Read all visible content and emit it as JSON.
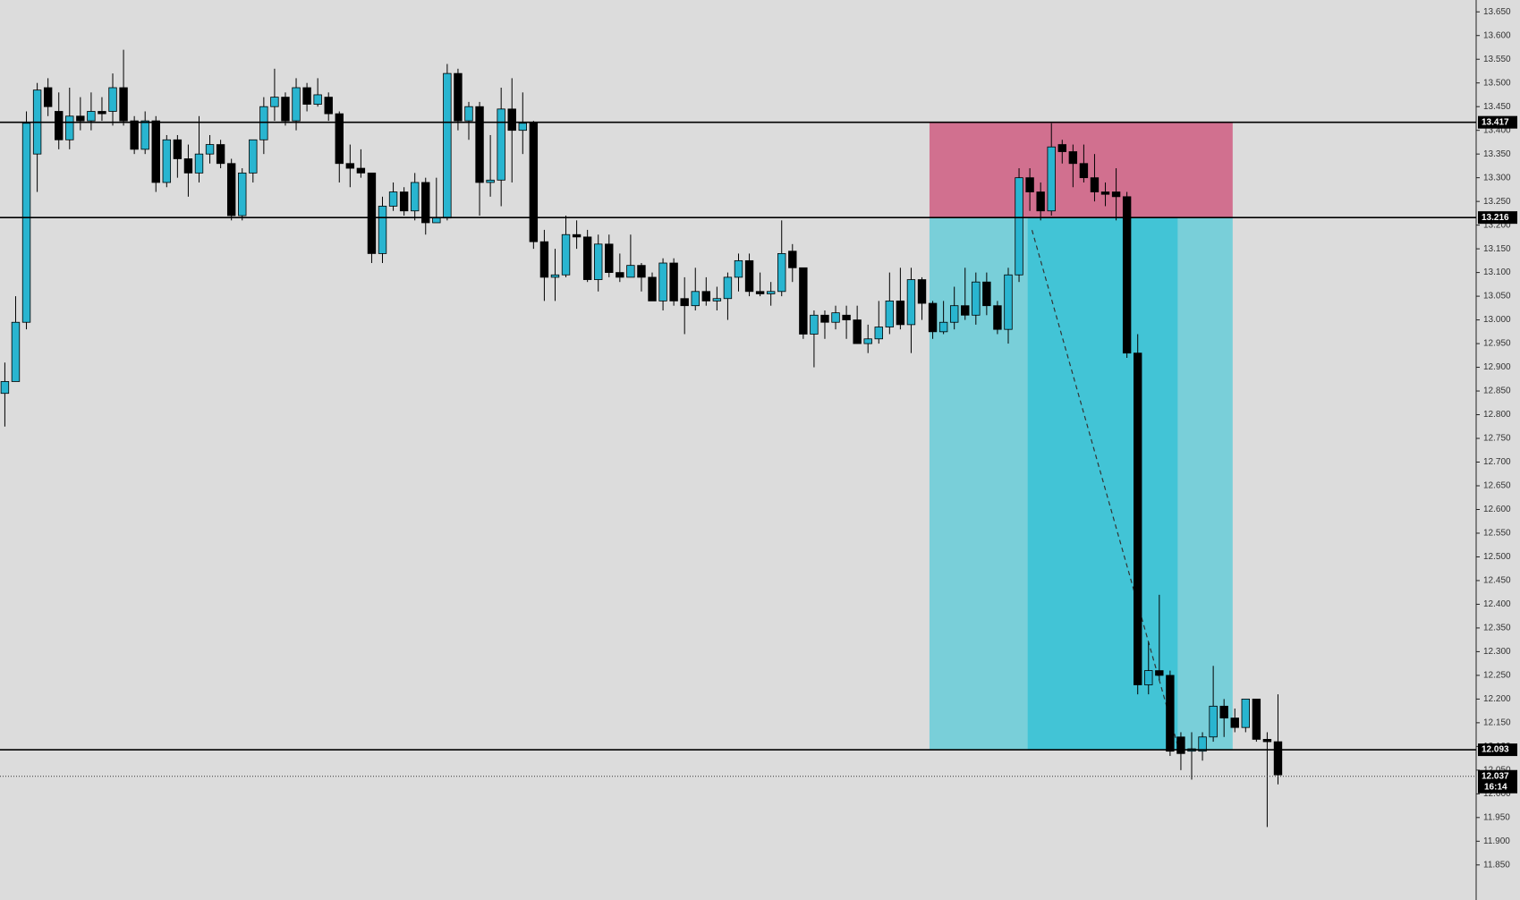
{
  "chart_data": {
    "type": "candlestick",
    "up_color": "#29b5d0",
    "down_color": "#000000",
    "open": [
      12.845,
      12.87,
      12.995,
      13.35,
      13.49,
      13.44,
      13.38,
      13.43,
      13.42,
      13.44,
      13.44,
      13.49,
      13.42,
      13.36,
      13.42,
      13.29,
      13.38,
      13.34,
      13.31,
      13.35,
      13.37,
      13.33,
      13.22,
      13.31,
      13.38,
      13.45,
      13.47,
      13.42,
      13.49,
      13.455,
      13.47,
      13.435,
      13.33,
      13.32,
      13.31,
      13.14,
      13.24,
      13.27,
      13.23,
      13.29,
      13.205,
      13.215,
      13.52,
      13.42,
      13.45,
      13.29,
      13.295,
      13.445,
      13.4,
      13.415,
      13.165,
      13.09,
      13.095,
      13.18,
      13.175,
      13.085,
      13.16,
      13.1,
      13.09,
      13.115,
      13.09,
      13.04,
      13.12,
      13.045,
      13.03,
      13.06,
      13.04,
      13.045,
      13.09,
      13.125,
      13.06,
      13.055,
      13.06,
      13.145,
      13.11,
      12.97,
      13.01,
      12.995,
      13.01,
      13.0,
      12.95,
      12.96,
      12.985,
      13.04,
      12.99,
      13.085,
      13.035,
      12.975,
      12.995,
      13.03,
      13.01,
      13.08,
      13.03,
      12.98,
      13.095,
      13.3,
      13.27,
      13.23,
      13.37,
      13.355,
      13.33,
      13.3,
      13.27,
      13.27,
      13.26,
      12.93,
      12.23,
      12.26,
      12.25,
      12.12,
      12.09,
      12.09,
      12.12,
      12.185,
      12.16,
      12.14,
      12.2,
      12.115,
      12.11
    ],
    "high": [
      12.91,
      13.05,
      13.44,
      13.5,
      13.51,
      13.48,
      13.49,
      13.47,
      13.48,
      13.47,
      13.52,
      13.57,
      13.43,
      13.44,
      13.43,
      13.39,
      13.39,
      13.37,
      13.43,
      13.39,
      13.38,
      13.34,
      13.32,
      13.38,
      13.47,
      13.53,
      13.48,
      13.51,
      13.5,
      13.51,
      13.48,
      13.44,
      13.37,
      13.36,
      13.31,
      13.26,
      13.29,
      13.28,
      13.31,
      13.3,
      13.3,
      13.54,
      13.53,
      13.46,
      13.46,
      13.39,
      13.49,
      13.51,
      13.48,
      13.42,
      13.19,
      13.15,
      13.22,
      13.21,
      13.19,
      13.18,
      13.18,
      13.14,
      13.18,
      13.12,
      13.1,
      13.13,
      13.13,
      13.09,
      13.11,
      13.09,
      13.07,
      13.1,
      13.14,
      13.14,
      13.1,
      13.08,
      13.21,
      13.16,
      13.11,
      13.02,
      13.02,
      13.03,
      13.03,
      13.03,
      12.99,
      13.04,
      13.1,
      13.11,
      13.11,
      13.09,
      13.04,
      13.04,
      13.07,
      13.11,
      13.1,
      13.1,
      13.04,
      13.11,
      13.32,
      13.32,
      13.29,
      13.415,
      13.38,
      13.37,
      13.37,
      13.35,
      13.29,
      13.32,
      13.27,
      12.97,
      12.32,
      12.42,
      12.26,
      12.13,
      12.13,
      12.13,
      12.27,
      12.2,
      12.18,
      12.2,
      12.2,
      12.13,
      12.21
    ],
    "low": [
      12.775,
      12.87,
      12.98,
      13.27,
      13.43,
      13.36,
      13.36,
      13.4,
      13.4,
      13.42,
      13.41,
      13.41,
      13.35,
      13.35,
      13.27,
      13.28,
      13.3,
      13.26,
      13.29,
      13.33,
      13.32,
      13.21,
      13.21,
      13.29,
      13.35,
      13.42,
      13.41,
      13.4,
      13.44,
      13.45,
      13.42,
      13.29,
      13.28,
      13.3,
      13.12,
      13.12,
      13.23,
      13.22,
      13.21,
      13.18,
      13.21,
      13.21,
      13.4,
      13.38,
      13.22,
      13.26,
      13.24,
      13.29,
      13.35,
      13.15,
      13.04,
      13.04,
      13.09,
      13.15,
      13.08,
      13.06,
      13.09,
      13.08,
      13.09,
      13.06,
      13.04,
      13.02,
      13.03,
      12.97,
      13.02,
      13.03,
      13.02,
      13.0,
      13.06,
      13.05,
      13.05,
      13.03,
      13.05,
      13.08,
      12.96,
      12.9,
      12.96,
      12.98,
      12.96,
      12.95,
      12.93,
      12.95,
      12.97,
      12.98,
      12.93,
      13.0,
      12.96,
      12.97,
      12.98,
      13.0,
      12.99,
      13.01,
      12.97,
      12.95,
      13.08,
      13.23,
      13.21,
      13.22,
      13.33,
      13.28,
      13.29,
      13.25,
      13.24,
      13.21,
      12.92,
      12.21,
      12.21,
      12.24,
      12.08,
      12.05,
      12.03,
      12.07,
      12.11,
      12.12,
      12.13,
      12.13,
      12.11,
      11.93,
      12.02
    ],
    "close": [
      12.87,
      12.995,
      13.415,
      13.485,
      13.45,
      13.38,
      13.43,
      13.42,
      13.44,
      13.435,
      13.49,
      13.42,
      13.36,
      13.42,
      13.29,
      13.38,
      13.34,
      13.31,
      13.35,
      13.37,
      13.33,
      13.22,
      13.31,
      13.38,
      13.45,
      13.47,
      13.42,
      13.49,
      13.455,
      13.475,
      13.435,
      13.33,
      13.32,
      13.31,
      13.14,
      13.24,
      13.27,
      13.23,
      13.29,
      13.205,
      13.215,
      13.52,
      13.42,
      13.45,
      13.29,
      13.295,
      13.445,
      13.4,
      13.415,
      13.165,
      13.09,
      13.095,
      13.18,
      13.175,
      13.085,
      13.16,
      13.1,
      13.09,
      13.115,
      13.09,
      13.04,
      13.12,
      13.04,
      13.03,
      13.06,
      13.04,
      13.045,
      13.09,
      13.125,
      13.06,
      13.055,
      13.06,
      13.14,
      13.11,
      12.97,
      13.01,
      12.995,
      13.015,
      13.0,
      12.95,
      12.96,
      12.985,
      13.04,
      12.99,
      13.085,
      13.035,
      12.975,
      12.995,
      13.03,
      13.01,
      13.08,
      13.03,
      12.98,
      13.095,
      13.3,
      13.27,
      13.23,
      13.365,
      13.355,
      13.33,
      13.3,
      13.27,
      13.265,
      13.26,
      12.93,
      12.23,
      12.26,
      12.25,
      12.09,
      12.085,
      12.095,
      12.12,
      12.185,
      12.16,
      12.14,
      12.2,
      12.115,
      12.11,
      12.04
    ],
    "levels": [
      13.417,
      13.216,
      12.093
    ],
    "last_price": 12.037,
    "countdown": "16:14",
    "ylim": [
      11.776,
      13.675
    ],
    "yticks": [
      {
        "value": 11.85,
        "label": "11.850"
      },
      {
        "value": 11.9,
        "label": "11.900"
      },
      {
        "value": 11.95,
        "label": "11.950"
      },
      {
        "value": 12.0,
        "label": "12.000"
      },
      {
        "value": 12.05,
        "label": "12.050"
      },
      {
        "value": 12.1,
        "label": "12.100"
      },
      {
        "value": 12.15,
        "label": "12.150"
      },
      {
        "value": 12.2,
        "label": "12.200"
      },
      {
        "value": 12.25,
        "label": "12.250"
      },
      {
        "value": 12.3,
        "label": "12.300"
      },
      {
        "value": 12.35,
        "label": "12.350"
      },
      {
        "value": 12.4,
        "label": "12.400"
      },
      {
        "value": 12.45,
        "label": "12.450"
      },
      {
        "value": 12.5,
        "label": "12.500"
      },
      {
        "value": 12.55,
        "label": "12.550"
      },
      {
        "value": 12.6,
        "label": "12.600"
      },
      {
        "value": 12.65,
        "label": "12.650"
      },
      {
        "value": 12.7,
        "label": "12.700"
      },
      {
        "value": 12.75,
        "label": "12.750"
      },
      {
        "value": 12.8,
        "label": "12.800"
      },
      {
        "value": 12.85,
        "label": "12.850"
      },
      {
        "value": 12.9,
        "label": "12.900"
      },
      {
        "value": 12.95,
        "label": "12.950"
      },
      {
        "value": 13.0,
        "label": "13.000"
      },
      {
        "value": 13.05,
        "label": "13.050"
      },
      {
        "value": 13.1,
        "label": "13.100"
      },
      {
        "value": 13.15,
        "label": "13.150"
      },
      {
        "value": 13.2,
        "label": "13.200"
      },
      {
        "value": 13.25,
        "label": "13.250"
      },
      {
        "value": 13.3,
        "label": "13.300"
      },
      {
        "value": 13.35,
        "label": "13.350"
      },
      {
        "value": 13.4,
        "label": "13.400"
      },
      {
        "value": 13.45,
        "label": "13.450"
      },
      {
        "value": 13.5,
        "label": "13.500"
      },
      {
        "value": 13.55,
        "label": "13.550"
      },
      {
        "value": 13.6,
        "label": "13.600"
      },
      {
        "value": 13.65,
        "label": "13.650"
      }
    ]
  }
}
